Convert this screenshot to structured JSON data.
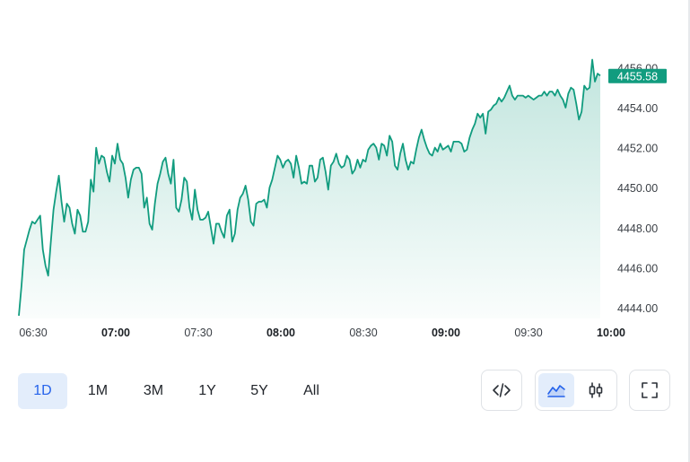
{
  "chart_data": {
    "type": "area",
    "x_start": "06:30",
    "x_end": "10:00",
    "ylim": [
      4443.6,
      4456.7
    ],
    "y_ticks": [
      "4444.00",
      "4446.00",
      "4448.00",
      "4450.00",
      "4452.00",
      "4454.00",
      "4456.00"
    ],
    "y_tick_values": [
      4444,
      4446,
      4448,
      4450,
      4452,
      4454,
      4456
    ],
    "x_ticks": [
      {
        "label": "06:30",
        "bold": false
      },
      {
        "label": "07:00",
        "bold": true
      },
      {
        "label": "07:30",
        "bold": false
      },
      {
        "label": "08:00",
        "bold": true
      },
      {
        "label": "08:30",
        "bold": false
      },
      {
        "label": "09:00",
        "bold": true
      },
      {
        "label": "09:30",
        "bold": false
      },
      {
        "label": "10:00",
        "bold": true
      }
    ],
    "last_price": 4455.58,
    "last_price_label": "4455.58",
    "line_color": "#119c7f",
    "values": [
      4443.6,
      4445.1,
      4446.9,
      4447.4,
      4447.9,
      4448.3,
      4448.2,
      4448.4,
      4448.6,
      4446.9,
      4446.1,
      4445.6,
      4447.3,
      4448.9,
      4449.8,
      4450.6,
      4449.3,
      4448.3,
      4449.2,
      4449.0,
      4448.2,
      4447.7,
      4448.9,
      4448.6,
      4447.8,
      4447.8,
      4448.3,
      4450.4,
      4449.8,
      4452.0,
      4451.2,
      4451.6,
      4451.5,
      4450.8,
      4450.3,
      4451.6,
      4451.2,
      4452.2,
      4451.4,
      4451.2,
      4450.5,
      4449.5,
      4450.4,
      4450.9,
      4451.0,
      4451.0,
      4450.7,
      4449.0,
      4449.5,
      4448.2,
      4447.9,
      4449.2,
      4450.2,
      4450.7,
      4451.3,
      4451.5,
      4450.7,
      4450.2,
      4451.4,
      4449.0,
      4448.8,
      4449.4,
      4450.5,
      4450.3,
      4449.0,
      4448.4,
      4449.9,
      4448.9,
      4448.4,
      4448.4,
      4448.5,
      4448.8,
      4448.0,
      4447.2,
      4448.2,
      4448.2,
      4447.8,
      4447.5,
      4448.6,
      4448.9,
      4447.3,
      4447.7,
      4448.9,
      4449.5,
      4449.7,
      4450.1,
      4449.4,
      4448.3,
      4448.1,
      4449.2,
      4449.3,
      4449.3,
      4449.4,
      4449.0,
      4450.0,
      4450.4,
      4451.0,
      4451.6,
      4451.4,
      4451.0,
      4451.3,
      4451.4,
      4451.2,
      4450.5,
      4451.6,
      4451.0,
      4450.2,
      4450.3,
      4450.2,
      4451.1,
      4451.1,
      4450.3,
      4450.5,
      4451.4,
      4451.5,
      4450.8,
      4449.9,
      4451.1,
      4451.3,
      4451.7,
      4451.2,
      4451.0,
      4451.1,
      4451.6,
      4451.4,
      4450.7,
      4450.9,
      4451.4,
      4451.0,
      4451.4,
      4451.3,
      4451.9,
      4452.1,
      4452.2,
      4452.0,
      4451.4,
      4452.2,
      4452.1,
      4451.6,
      4452.6,
      4452.3,
      4451.1,
      4450.9,
      4451.7,
      4452.2,
      4451.4,
      4450.9,
      4451.3,
      4451.2,
      4451.9,
      4452.5,
      4452.9,
      4452.4,
      4452.0,
      4451.7,
      4451.6,
      4452.0,
      4451.8,
      4452.2,
      4451.9,
      4452.0,
      4452.1,
      4451.8,
      4452.3,
      4452.3,
      4452.3,
      4452.2,
      4451.8,
      4451.9,
      4452.5,
      4452.9,
      4453.2,
      4453.7,
      4453.5,
      4453.7,
      4452.7,
      4453.8,
      4453.9,
      4454.1,
      4454.2,
      4454.5,
      4454.3,
      4454.5,
      4454.8,
      4455.1,
      4454.6,
      4454.4,
      4454.6,
      4454.6,
      4454.6,
      4454.5,
      4454.6,
      4454.5,
      4454.4,
      4454.5,
      4454.6,
      4454.6,
      4454.8,
      4454.6,
      4454.8,
      4454.8,
      4454.6,
      4454.9,
      4454.6,
      4454.4,
      4454.0,
      4454.7,
      4455.0,
      4454.9,
      4454.2,
      4453.4,
      4453.8,
      4455.1,
      4454.9,
      4455.0,
      4456.4,
      4455.3,
      4455.7,
      4455.6
    ]
  },
  "toolbar": {
    "ranges": [
      "1D",
      "1M",
      "3M",
      "1Y",
      "5Y",
      "All"
    ],
    "active_range": "1D",
    "embed_icon": "code-icon",
    "area_icon": "area-chart-icon",
    "candle_icon": "candlestick-icon",
    "fullscreen_icon": "fullscreen-icon",
    "accent": "#2563eb",
    "accent_bg": "#e3edfb"
  }
}
